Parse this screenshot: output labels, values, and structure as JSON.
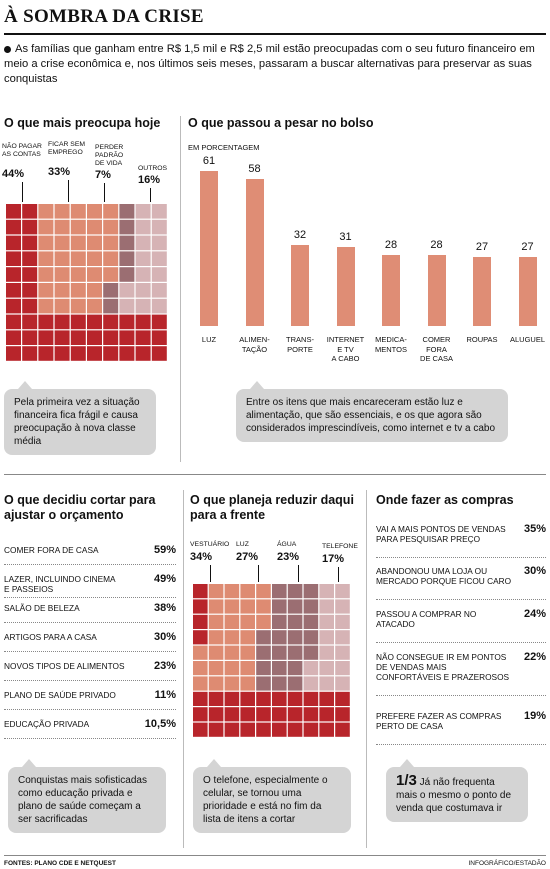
{
  "title": "À SOMBRA DA CRISE",
  "intro": "As famílias que ganham entre R$ 1,5 mil e R$ 2,5 mil estão preocupadas com o seu futuro financeiro em meio a crise econômica e, nos últimos seis meses, passaram a buscar alternativas para preservar as suas conquistas",
  "worry": {
    "heading": "O que mais preocupa hoje",
    "callout": "Pela primeira vez a situação financeira fica frágil e causa preocupação à nova classe média"
  },
  "pocket": {
    "heading": "O que passou a pesar no bolso",
    "unit": "EM PORCENTAGEM",
    "callout": "Entre os itens que mais encareceram estão luz e alimentação, que são essenciais, e os que agora são considerados imprescindíveis, como internet e tv a cabo"
  },
  "cut": {
    "heading": "O que decidiu cortar para ajustar o orçamento",
    "callout": "Conquistas mais sofisticadas como educação privada e plano de saúde começam a ser sacrificadas"
  },
  "reduce": {
    "heading": "O que planeja reduzir daqui para a frente",
    "callout": "O telefone, especialmente o celular, se tornou uma prioridade e está no fim da lista de itens a cortar"
  },
  "shop": {
    "heading": "Onde fazer as compras",
    "callout_big": "1/3",
    "callout": "Já não frequenta mais o mesmo o ponto de venda que costumava ir"
  },
  "footer": {
    "sources": "FONTES: PLANO CDE E NETQUEST",
    "credit": "INFOGRÁFICO/ESTADÃO"
  },
  "colors": {
    "dark_red": "#b8252b",
    "salmon": "#de8b72",
    "mauve": "#9b6e72",
    "pink_grey": "#d6b3b5",
    "bar": "#df8d75"
  },
  "chart_data": [
    {
      "type": "waffle",
      "title": "O que mais preocupa hoje",
      "categories": [
        "NÃO PAGAR AS CONTAS",
        "FICAR SEM EMPREGO",
        "PERDER PADRÃO DE VIDA",
        "OUTROS"
      ],
      "values": [
        44,
        33,
        7,
        16
      ],
      "value_labels": [
        "44%",
        "33%",
        "7%",
        "16%"
      ]
    },
    {
      "type": "bar",
      "title": "O que passou a pesar no bolso",
      "ylabel": "EM PORCENTAGEM",
      "categories": [
        "LUZ",
        "ALIMEN-TAÇÃO",
        "TRANS-PORTE",
        "INTERNET E TV A CABO",
        "MEDICA-MENTOS",
        "COMER FORA DE CASA",
        "ROUPAS",
        "ALUGUEL"
      ],
      "category_lines": [
        [
          "LUZ"
        ],
        [
          "ALIMEN-",
          "TAÇÃO"
        ],
        [
          "TRANS-",
          "PORTE"
        ],
        [
          "INTERNET",
          "E TV",
          "A CABO"
        ],
        [
          "MEDICA-",
          "MENTOS"
        ],
        [
          "COMER",
          "FORA",
          "DE CASA"
        ],
        [
          "ROUPAS"
        ],
        [
          "ALUGUEL"
        ]
      ],
      "values": [
        61,
        58,
        32,
        31,
        28,
        28,
        27,
        27
      ],
      "ylim": [
        0,
        61
      ]
    },
    {
      "type": "table",
      "title": "O que decidiu cortar para ajustar o orçamento",
      "rows": [
        {
          "label": [
            "COMER FORA DE CASA"
          ],
          "value": "59%"
        },
        {
          "label": [
            "LAZER, INCLUINDO CINEMA",
            "E PASSEIOS"
          ],
          "value": "49%"
        },
        {
          "label": [
            "SALÃO DE BELEZA"
          ],
          "value": "38%"
        },
        {
          "label": [
            "ARTIGOS PARA A CASA"
          ],
          "value": "30%"
        },
        {
          "label": [
            "NOVOS TIPOS DE ALIMENTOS"
          ],
          "value": "23%"
        },
        {
          "label": [
            "PLANO DE SAÚDE PRIVADO"
          ],
          "value": "11%"
        },
        {
          "label": [
            "EDUCAÇÃO PRIVADA"
          ],
          "value": "10,5%"
        }
      ]
    },
    {
      "type": "waffle",
      "title": "O que planeja reduzir daqui para a frente",
      "categories": [
        "VESTUÁRIO",
        "LUZ",
        "ÁGUA",
        "TELEFONE"
      ],
      "values": [
        34,
        27,
        23,
        17
      ],
      "value_labels": [
        "34%",
        "27%",
        "23%",
        "17%"
      ]
    },
    {
      "type": "table",
      "title": "Onde fazer as compras",
      "rows": [
        {
          "label": [
            "VAI A MAIS PONTOS DE VENDAS",
            "PARA PESQUISAR PREÇO"
          ],
          "value": "35%"
        },
        {
          "label": [
            "ABANDONOU UMA LOJA OU",
            "MERCADO PORQUE FICOU CARO"
          ],
          "value": "30%"
        },
        {
          "label": [
            "PASSOU A COMPRAR NO",
            "ATACADO"
          ],
          "value": "24%"
        },
        {
          "label": [
            "NÃO CONSEGUE IR EM PONTOS",
            "DE VENDAS MAIS",
            "CONFORTÁVEIS E PRAZEROSOS"
          ],
          "value": "22%"
        },
        {
          "label": [
            "PREFERE FAZER AS COMPRAS",
            "PERTO DE CASA"
          ],
          "value": "19%"
        }
      ]
    }
  ]
}
